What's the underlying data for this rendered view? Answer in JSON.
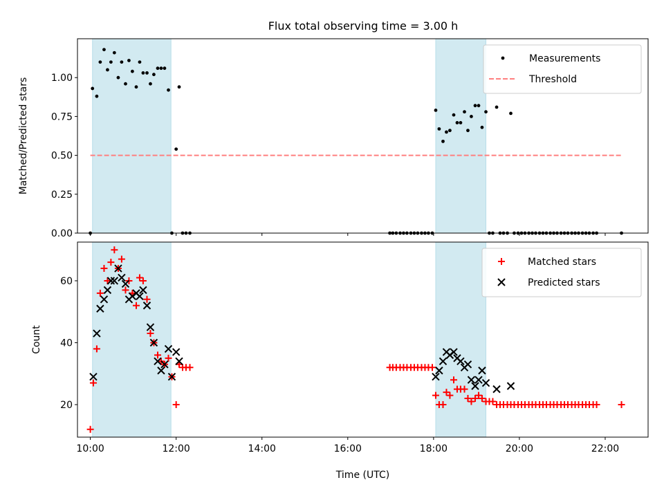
{
  "title": "Flux total observing time = 3.00 h",
  "colors": {
    "shade": "#add8e6",
    "measurement": "#000000",
    "threshold": "#ff7f7f",
    "matched": "#ff0000",
    "predicted": "#000000"
  },
  "chart_data": [
    {
      "type": "scatter",
      "ylabel": "Matched/Predicted stars",
      "xlim": [
        9.7,
        23.0
      ],
      "ylim": [
        0,
        1.25
      ],
      "yticks": [
        0.0,
        0.25,
        0.5,
        0.75,
        1.0
      ],
      "ytick_labels": [
        "0.00",
        "0.25",
        "0.50",
        "0.75",
        "1.00"
      ],
      "legend_position": "top-right",
      "shaded_intervals": [
        [
          10.05,
          11.88
        ],
        [
          18.05,
          19.22
        ]
      ],
      "series": [
        {
          "name": "Measurements",
          "marker": "dot",
          "x": [
            10.0,
            10.05,
            10.15,
            10.23,
            10.32,
            10.4,
            10.48,
            10.56,
            10.65,
            10.73,
            10.82,
            10.9,
            10.98,
            11.07,
            11.15,
            11.23,
            11.32,
            11.4,
            11.48,
            11.57,
            11.65,
            11.73,
            11.82,
            11.9,
            12.0,
            12.07,
            12.15,
            12.23,
            12.32,
            16.98,
            17.05,
            17.13,
            17.22,
            17.3,
            17.38,
            17.47,
            17.55,
            17.63,
            17.72,
            17.8,
            17.88,
            17.97,
            18.05,
            18.13,
            18.22,
            18.3,
            18.38,
            18.47,
            18.55,
            18.63,
            18.72,
            18.8,
            18.88,
            18.97,
            19.05,
            19.13,
            19.22,
            19.3,
            19.38,
            19.47,
            19.55,
            19.63,
            19.72,
            19.8,
            19.88,
            19.97,
            20.05,
            20.13,
            20.22,
            20.3,
            20.38,
            20.47,
            20.55,
            20.63,
            20.72,
            20.8,
            20.88,
            20.97,
            21.05,
            21.13,
            21.22,
            21.3,
            21.38,
            21.47,
            21.55,
            21.63,
            21.72,
            21.8,
            22.38
          ],
          "y": [
            0.0,
            0.93,
            0.88,
            1.1,
            1.18,
            1.05,
            1.1,
            1.16,
            1.0,
            1.1,
            0.96,
            1.11,
            1.04,
            0.94,
            1.1,
            1.03,
            1.03,
            0.96,
            1.02,
            1.06,
            1.06,
            1.06,
            0.92,
            0.0,
            0.54,
            0.94,
            0.0,
            0.0,
            0.0,
            0.0,
            0.0,
            0.0,
            0.0,
            0.0,
            0.0,
            0.0,
            0.0,
            0.0,
            0.0,
            0.0,
            0.0,
            0.0,
            0.79,
            0.67,
            0.59,
            0.65,
            0.66,
            0.76,
            0.71,
            0.71,
            0.78,
            0.66,
            0.75,
            0.82,
            0.82,
            0.68,
            0.78,
            0.0,
            0.0,
            0.81,
            0.0,
            0.0,
            0.0,
            0.77,
            0.0,
            0.0,
            0.0,
            0.0,
            0.0,
            0.0,
            0.0,
            0.0,
            0.0,
            0.0,
            0.0,
            0.0,
            0.0,
            0.0,
            0.0,
            0.0,
            0.0,
            0.0,
            0.0,
            0.0,
            0.0,
            0.0,
            0.0,
            0.0,
            0.0
          ]
        },
        {
          "name": "Threshold",
          "style": "dashed",
          "x": [
            10.0,
            22.4
          ],
          "y": [
            0.5,
            0.5
          ]
        }
      ]
    },
    {
      "type": "scatter",
      "ylabel": "Count",
      "xlabel": "Time (UTC)",
      "xlim": [
        9.7,
        23.0
      ],
      "ylim": [
        9.5,
        72.5
      ],
      "xticks": [
        10,
        12,
        14,
        16,
        18,
        20,
        22
      ],
      "xtick_labels": [
        "10:00",
        "12:00",
        "14:00",
        "16:00",
        "18:00",
        "20:00",
        "22:00"
      ],
      "yticks": [
        20,
        40,
        60
      ],
      "ytick_labels": [
        "20",
        "40",
        "60"
      ],
      "legend_position": "top-right",
      "shaded_intervals": [
        [
          10.05,
          11.88
        ],
        [
          18.05,
          19.22
        ]
      ],
      "series": [
        {
          "name": "Matched stars",
          "marker": "plus",
          "x": [
            10.0,
            10.07,
            10.15,
            10.23,
            10.32,
            10.4,
            10.48,
            10.56,
            10.65,
            10.73,
            10.82,
            10.9,
            10.98,
            11.07,
            11.15,
            11.23,
            11.32,
            11.4,
            11.48,
            11.57,
            11.65,
            11.73,
            11.82,
            11.9,
            12.0,
            12.07,
            12.15,
            12.23,
            12.32,
            16.98,
            17.05,
            17.13,
            17.22,
            17.3,
            17.38,
            17.47,
            17.55,
            17.63,
            17.72,
            17.8,
            17.88,
            17.97,
            18.05,
            18.13,
            18.22,
            18.3,
            18.38,
            18.47,
            18.55,
            18.63,
            18.72,
            18.8,
            18.88,
            18.97,
            19.05,
            19.13,
            19.22,
            19.3,
            19.38,
            19.47,
            19.55,
            19.63,
            19.72,
            19.8,
            19.88,
            19.97,
            20.05,
            20.13,
            20.22,
            20.3,
            20.38,
            20.47,
            20.55,
            20.63,
            20.72,
            20.8,
            20.88,
            20.97,
            21.05,
            21.13,
            21.22,
            21.3,
            21.38,
            21.47,
            21.55,
            21.63,
            21.72,
            21.8,
            22.38
          ],
          "y": [
            12,
            27,
            38,
            56,
            64,
            60,
            66,
            70,
            64,
            67,
            57,
            60,
            56,
            52,
            61,
            60,
            54,
            43,
            40,
            36,
            34,
            33,
            35,
            29,
            20,
            33,
            32,
            32,
            32,
            32,
            32,
            32,
            32,
            32,
            32,
            32,
            32,
            32,
            32,
            32,
            32,
            32,
            23,
            20,
            20,
            24,
            23,
            28,
            25,
            25,
            25,
            22,
            21,
            22,
            23,
            22,
            21,
            21,
            21,
            20,
            20,
            20,
            20,
            20,
            20,
            20,
            20,
            20,
            20,
            20,
            20,
            20,
            20,
            20,
            20,
            20,
            20,
            20,
            20,
            20,
            20,
            20,
            20,
            20,
            20,
            20,
            20,
            20,
            20
          ]
        },
        {
          "name": "Predicted stars",
          "marker": "x",
          "x": [
            10.07,
            10.15,
            10.23,
            10.32,
            10.4,
            10.48,
            10.56,
            10.65,
            10.73,
            10.82,
            10.9,
            10.98,
            11.07,
            11.15,
            11.23,
            11.32,
            11.4,
            11.48,
            11.57,
            11.65,
            11.73,
            11.82,
            11.9,
            12.0,
            12.07,
            18.05,
            18.13,
            18.22,
            18.3,
            18.38,
            18.47,
            18.55,
            18.63,
            18.72,
            18.8,
            18.88,
            18.97,
            19.05,
            19.13,
            19.22,
            19.47,
            19.8
          ],
          "y": [
            29,
            43,
            51,
            54,
            57,
            60,
            60,
            64,
            61,
            59,
            54,
            55,
            56,
            55,
            57,
            52,
            45,
            40,
            34,
            31,
            33,
            38,
            29,
            37,
            34,
            29,
            31,
            34,
            37,
            36,
            37,
            35,
            34,
            32,
            33,
            28,
            26,
            28,
            31,
            27,
            25,
            26
          ]
        }
      ]
    }
  ]
}
